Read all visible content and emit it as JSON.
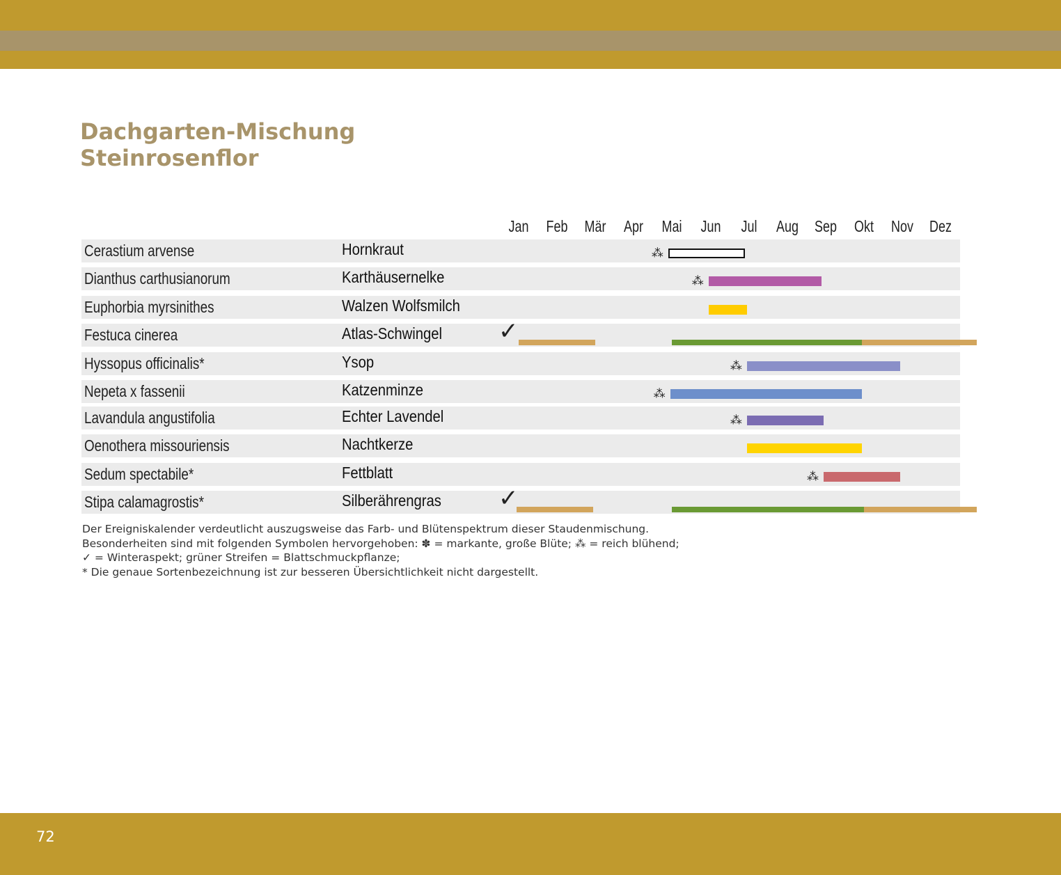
{
  "header": {
    "title": "Dachgarten-Mischung",
    "subtitle": "Steinrosenflor"
  },
  "chart_data": {
    "type": "table",
    "months": [
      "Jan",
      "Feb",
      "Mär",
      "Apr",
      "Mai",
      "Jun",
      "Jul",
      "Aug",
      "Sep",
      "Okt",
      "Nov",
      "Dez"
    ],
    "rows": [
      {
        "latin": "Cerastium arvense",
        "german": "Hornkraut",
        "rich_flowering": true,
        "winter_aspect": false,
        "bars": [
          {
            "from": 4.4,
            "to": 6.4,
            "color": "#ffffff",
            "outline": true
          }
        ]
      },
      {
        "latin": "Dianthus carthusianorum",
        "german": "Karthäusernelke",
        "rich_flowering": true,
        "winter_aspect": false,
        "bars": [
          {
            "from": 5.45,
            "to": 8.4,
            "color": "#b25aa6"
          }
        ]
      },
      {
        "latin": "Euphorbia myrsinithes",
        "german": "Walzen Wolfsmilch",
        "rich_flowering": false,
        "winter_aspect": false,
        "bars": [
          {
            "from": 5.45,
            "to": 6.45,
            "color": "#ffcc00"
          }
        ]
      },
      {
        "latin": "Festuca cinerea",
        "german": "Atlas-Schwingel",
        "rich_flowering": false,
        "winter_aspect": true,
        "bars": [
          {
            "from": 0.5,
            "to": 2.5,
            "color": "#d2a55c"
          },
          {
            "from": 4.5,
            "to": 9.45,
            "color": "#6a9a34"
          },
          {
            "from": 9.45,
            "to": 12.45,
            "color": "#d2a55c"
          }
        ]
      },
      {
        "latin": "Hyssopus officinalis*",
        "german": "Ysop",
        "rich_flowering": true,
        "winter_aspect": false,
        "bars": [
          {
            "from": 6.45,
            "to": 10.45,
            "color": "#8a8fc8"
          }
        ]
      },
      {
        "latin": "Nepeta x fassenii",
        "german": "Katzenminze",
        "rich_flowering": true,
        "winter_aspect": false,
        "bars": [
          {
            "from": 4.45,
            "to": 9.45,
            "color": "#6d8fcb"
          }
        ]
      },
      {
        "latin": "Lavandula angustifolia",
        "german": "Echter Lavendel",
        "rich_flowering": true,
        "winter_aspect": false,
        "bars": [
          {
            "from": 6.45,
            "to": 8.45,
            "color": "#7b6cb2"
          }
        ]
      },
      {
        "latin": "Oenothera missouriensis",
        "german": "Nachtkerze",
        "rich_flowering": false,
        "winter_aspect": false,
        "bars": [
          {
            "from": 6.45,
            "to": 9.45,
            "color": "#ffd400"
          }
        ]
      },
      {
        "latin": "Sedum spectabile*",
        "german": "Fettblatt",
        "rich_flowering": true,
        "winter_aspect": false,
        "bars": [
          {
            "from": 8.45,
            "to": 10.45,
            "color": "#c9696d"
          }
        ]
      },
      {
        "latin": "Stipa calamagrostis*",
        "german": "Silberährengras",
        "rich_flowering": false,
        "winter_aspect": true,
        "bars": [
          {
            "from": 0.45,
            "to": 2.45,
            "color": "#d2a55c"
          },
          {
            "from": 4.5,
            "to": 9.5,
            "color": "#6a9a34"
          },
          {
            "from": 9.5,
            "to": 12.45,
            "color": "#d2a55c"
          }
        ]
      }
    ]
  },
  "symbols": {
    "rich_flowering": "⁂",
    "winter_aspect": "✓"
  },
  "notes": [
    "Der Ereigniskalender verdeutlicht auszugsweise das Farb- und Blütenspektrum dieser Staudenmischung.",
    "Besonderheiten sind mit folgenden Symbolen hervorgehoben: ✽ = markante, große Blüte; ⁂ = reich blühend;",
    "✓ = Winteraspekt; grüner Streifen = Blattschmuckpflanze;",
    "* Die genaue Sortenbezeichnung ist zur besseren Übersichtlichkeit nicht dargestellt."
  ],
  "footer": {
    "page_number": "72"
  }
}
